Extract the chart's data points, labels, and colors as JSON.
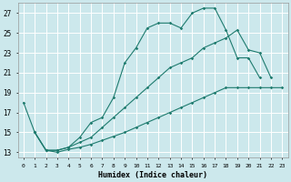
{
  "xlabel": "Humidex (Indice chaleur)",
  "bg_color": "#cce8ec",
  "grid_color": "#ffffff",
  "line_color": "#1e7b6e",
  "xlim": [
    -0.5,
    23.5
  ],
  "ylim": [
    12.5,
    28.0
  ],
  "xticks": [
    0,
    1,
    2,
    3,
    4,
    5,
    6,
    7,
    8,
    9,
    10,
    11,
    12,
    13,
    14,
    15,
    16,
    17,
    18,
    19,
    20,
    21,
    22,
    23
  ],
  "yticks": [
    13,
    15,
    17,
    19,
    21,
    23,
    25,
    27
  ],
  "line1_x": [
    0,
    1,
    2,
    3,
    4,
    5,
    6,
    7,
    8,
    9,
    10,
    11,
    12,
    13,
    14,
    15,
    16,
    17,
    18,
    19,
    20,
    21
  ],
  "line1_y": [
    18.0,
    15.0,
    13.2,
    13.2,
    13.5,
    14.5,
    16.0,
    16.5,
    18.5,
    22.0,
    23.5,
    25.5,
    26.0,
    26.0,
    25.5,
    27.0,
    27.5,
    27.5,
    25.3,
    22.5,
    22.5,
    20.5
  ],
  "line2_x": [
    1,
    2,
    3,
    4,
    5,
    6,
    7,
    8,
    9,
    10,
    11,
    12,
    13,
    14,
    15,
    16,
    17,
    18,
    19,
    20,
    21,
    22
  ],
  "line2_y": [
    15.0,
    13.2,
    13.2,
    13.5,
    14.0,
    14.5,
    15.5,
    16.5,
    17.5,
    18.5,
    19.5,
    20.5,
    21.5,
    22.0,
    22.5,
    23.5,
    24.0,
    24.5,
    25.3,
    23.3,
    23.0,
    20.5
  ],
  "line3_x": [
    1,
    2,
    3,
    4,
    5,
    6,
    7,
    8,
    9,
    10,
    11,
    12,
    13,
    14,
    15,
    16,
    17,
    18,
    19,
    20,
    21,
    22,
    23
  ],
  "line3_y": [
    15.0,
    13.2,
    13.0,
    13.3,
    13.5,
    13.8,
    14.2,
    14.6,
    15.0,
    15.5,
    16.0,
    16.5,
    17.0,
    17.5,
    18.0,
    18.5,
    19.0,
    19.5,
    19.5,
    19.5,
    19.5,
    19.5,
    19.5
  ]
}
